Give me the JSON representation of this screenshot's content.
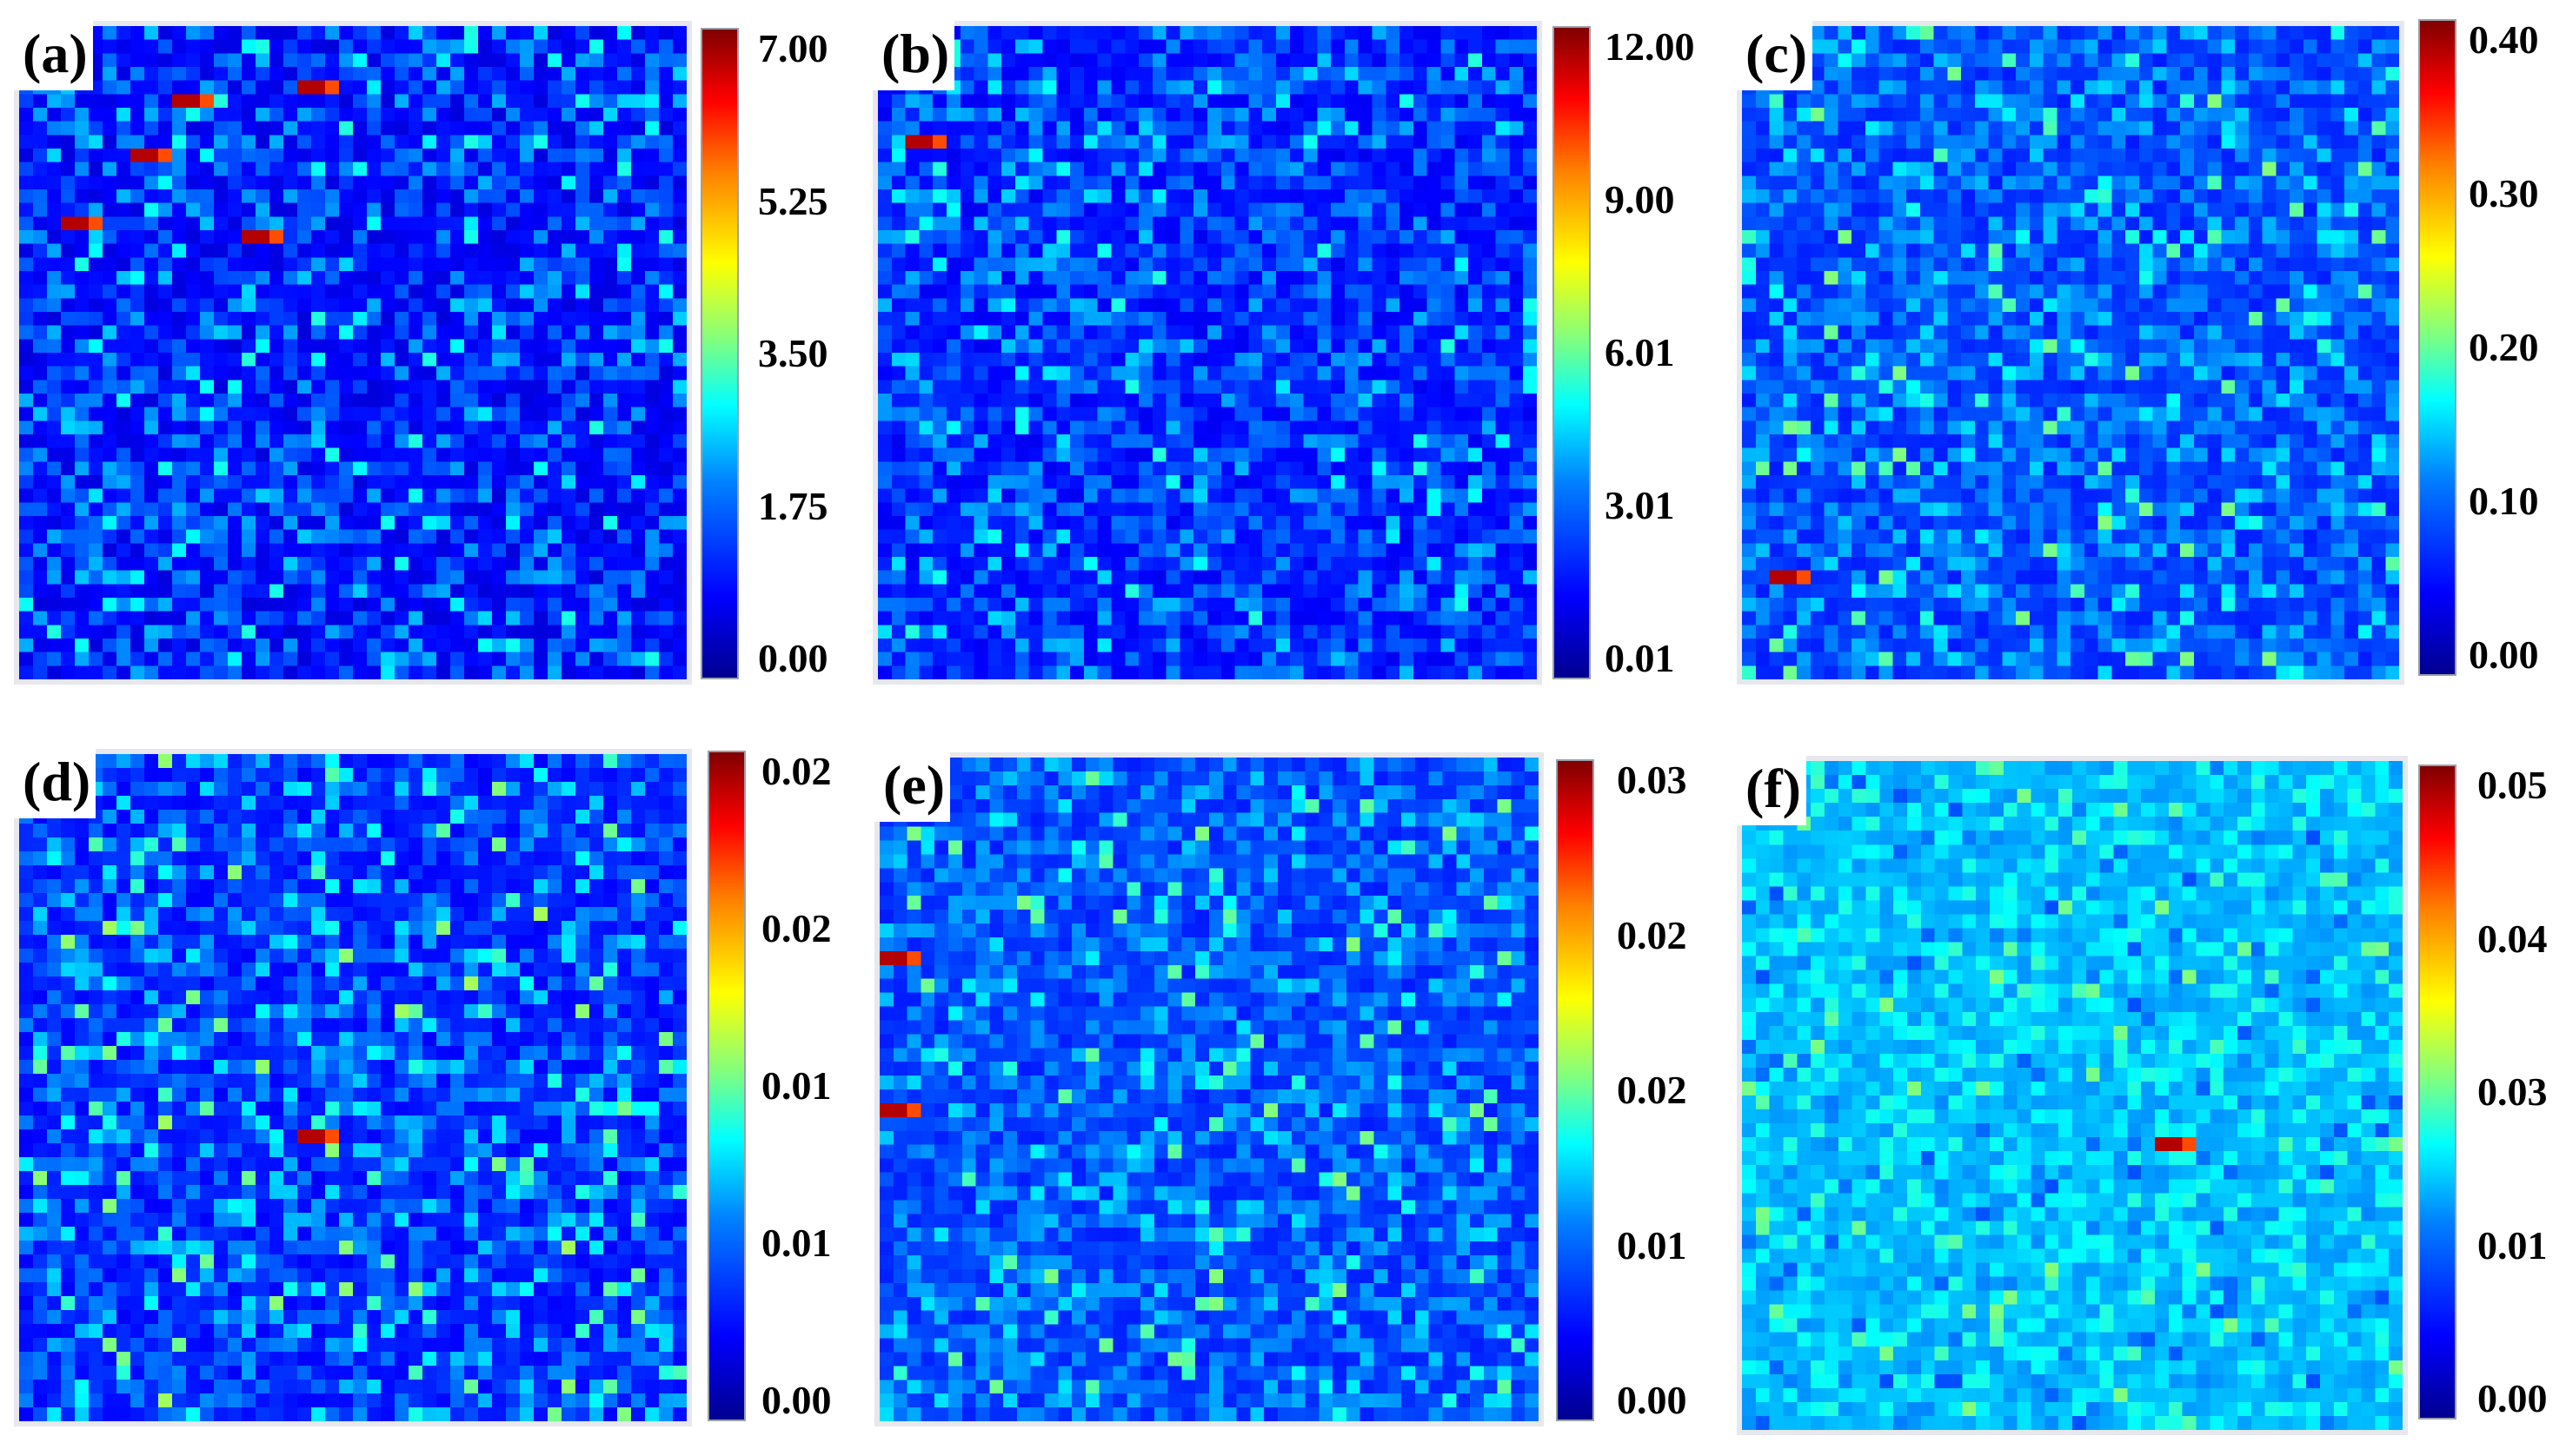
{
  "chart_data": [
    {
      "type": "heatmap",
      "label": "(a)",
      "colorbar_ticks": [
        "7.00",
        "5.25",
        "3.50",
        "1.75",
        "0.00"
      ],
      "colormap": "jet",
      "range": [
        0.0,
        7.0
      ],
      "hotspots": 5
    },
    {
      "type": "heatmap",
      "label": "(b)",
      "colorbar_ticks": [
        "12.00",
        "9.00",
        "6.01",
        "3.01",
        "0.01"
      ],
      "colormap": "jet",
      "range": [
        0.01,
        12.0
      ],
      "hotspots": 1
    },
    {
      "type": "heatmap",
      "label": "(c)",
      "colorbar_ticks": [
        "0.40",
        "0.30",
        "0.20",
        "0.10",
        "0.00"
      ],
      "colormap": "jet",
      "range": [
        0.0,
        0.4
      ],
      "hotspots": 1
    },
    {
      "type": "heatmap",
      "label": "(d)",
      "colorbar_ticks": [
        "0.02",
        "0.02",
        "0.01",
        "0.01",
        "0.00"
      ],
      "colormap": "jet",
      "range": [
        0.0,
        0.02
      ],
      "hotspots": 1
    },
    {
      "type": "heatmap",
      "label": "(e)",
      "colorbar_ticks": [
        "0.03",
        "0.02",
        "0.02",
        "0.01",
        "0.00"
      ],
      "colormap": "jet",
      "range": [
        0.0,
        0.03
      ],
      "hotspots": 2
    },
    {
      "type": "heatmap",
      "label": "(f)",
      "colorbar_ticks": [
        "0.05",
        "0.04",
        "0.03",
        "0.01",
        "0.00"
      ],
      "colormap": "jet",
      "range": [
        0.0,
        0.05
      ],
      "hotspots": 1
    }
  ]
}
